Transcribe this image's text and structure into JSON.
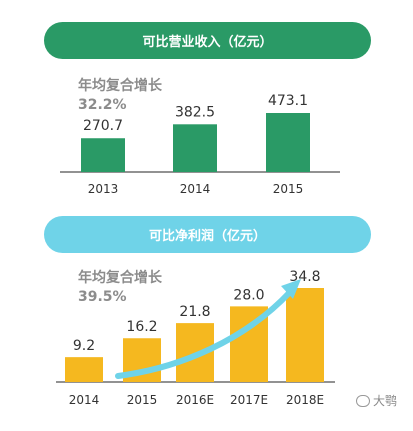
{
  "chart_data": [
    {
      "type": "bar",
      "title": "可比营业收入（亿元）",
      "annotation_label": "年均复合增长",
      "annotation_value": "32.2%",
      "categories": [
        "2013",
        "2014",
        "2015"
      ],
      "values": [
        270.7,
        382.5,
        473.1
      ],
      "value_labels": [
        "270.7",
        "382.5",
        "473.1"
      ],
      "color": "#2a9a66",
      "legend": "none"
    },
    {
      "type": "bar",
      "title": "可比净利润（亿元）",
      "annotation_label": "年均复合增长",
      "annotation_value": "39.5%",
      "categories": [
        "2014",
        "2015",
        "2016E",
        "2017E",
        "2018E"
      ],
      "values": [
        9.2,
        16.2,
        21.8,
        28.0,
        34.8
      ],
      "value_labels": [
        "9.2",
        "16.2",
        "21.8",
        "28.0",
        "34.8"
      ],
      "color": "#f5b81f",
      "trend_arrow_color": "#6fd3e8",
      "legend": "none"
    }
  ],
  "watermark": "大鹗"
}
